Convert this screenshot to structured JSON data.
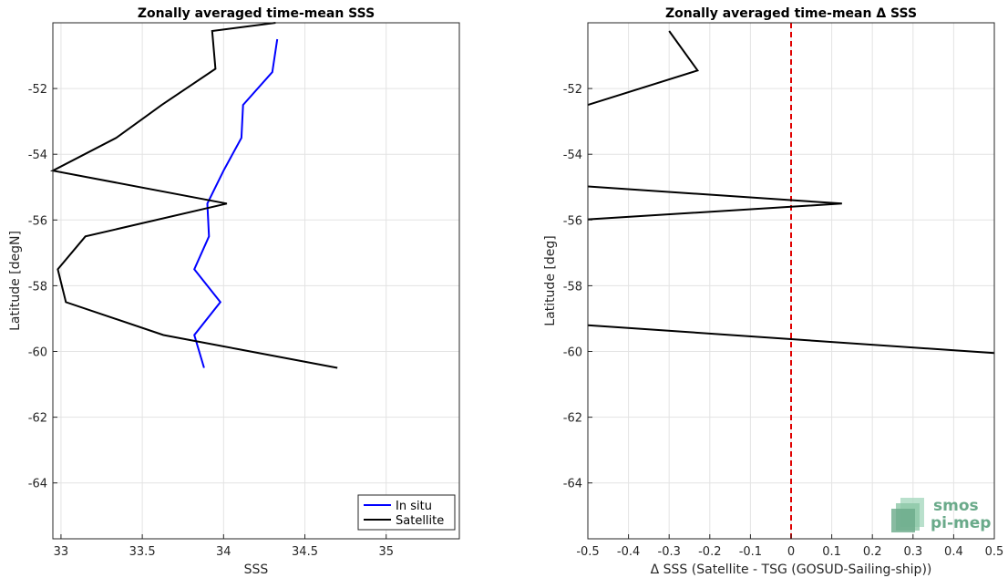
{
  "chart_data": [
    {
      "type": "line",
      "title": "Zonally averaged time-mean SSS",
      "xlabel": "SSS",
      "ylabel": "Latitude [degN]",
      "xlim": [
        32.95,
        35.45
      ],
      "ylim": [
        -65.7,
        -50.0
      ],
      "xticks": [
        33,
        33.5,
        34,
        34.5,
        35
      ],
      "xtick_labels": [
        "33",
        "33.5",
        "34",
        "34.5",
        "35"
      ],
      "yticks": [
        -52,
        -54,
        -56,
        -58,
        -60,
        -62,
        -64
      ],
      "ytick_labels": [
        "-52",
        "-54",
        "-56",
        "-58",
        "-60",
        "-62",
        "-64"
      ],
      "grid": true,
      "legend_position": "bottom-right",
      "series": [
        {
          "name": "In situ",
          "color": "#0000ff",
          "x": [
            34.33,
            34.3,
            34.12,
            34.11,
            34.0,
            33.9,
            33.91,
            33.82,
            33.98,
            33.82,
            33.88
          ],
          "y": [
            -50.5,
            -51.5,
            -52.5,
            -53.5,
            -54.5,
            -55.5,
            -56.5,
            -57.5,
            -58.5,
            -59.5,
            -60.5
          ]
        },
        {
          "name": "Satellite",
          "color": "#000000",
          "x": [
            34.32,
            33.93,
            33.95,
            33.62,
            33.34,
            32.95,
            34.02,
            33.15,
            32.98,
            33.03,
            33.63,
            34.7
          ],
          "y": [
            -50.0,
            -50.25,
            -51.4,
            -52.5,
            -53.5,
            -54.5,
            -55.5,
            -56.5,
            -57.5,
            -58.5,
            -59.5,
            -60.5
          ]
        }
      ]
    },
    {
      "type": "line",
      "title": "Zonally averaged time-mean Δ SSS",
      "xlabel": "Δ SSS (Satellite - TSG (GOSUD-Sailing-ship))",
      "ylabel": "Latitude [deg]",
      "xlim": [
        -0.5,
        0.5
      ],
      "ylim": [
        -65.7,
        -50.0
      ],
      "xticks": [
        -0.5,
        -0.4,
        -0.3,
        -0.2,
        -0.1,
        0,
        0.1,
        0.2,
        0.3,
        0.4,
        0.5
      ],
      "xtick_labels": [
        "-0.5",
        "-0.4",
        "-0.3",
        "-0.2",
        "-0.1",
        "0",
        "0.1",
        "0.2",
        "0.3",
        "0.4",
        "0.5"
      ],
      "yticks": [
        -52,
        -54,
        -56,
        -58,
        -60,
        -62,
        -64
      ],
      "ytick_labels": [
        "-52",
        "-54",
        "-56",
        "-58",
        "-60",
        "-62",
        "-64"
      ],
      "grid": true,
      "reference_line": {
        "x": 0,
        "color": "#e00000",
        "style": "dashed"
      },
      "series": [
        {
          "color": "#000000",
          "segments": [
            {
              "x": [
                -0.3,
                -0.23,
                -0.5
              ],
              "y": [
                -50.25,
                -51.45,
                -52.5
              ]
            },
            {
              "x": [
                -0.5,
                0.125,
                -0.5
              ],
              "y": [
                -54.98,
                -55.5,
                -55.98
              ]
            },
            {
              "x": [
                -0.5,
                0.5
              ],
              "y": [
                -59.2,
                -60.05
              ]
            }
          ]
        }
      ]
    }
  ],
  "logo": {
    "line1": "smos",
    "line2": "pi-mep",
    "color": "#6aaa8a"
  }
}
